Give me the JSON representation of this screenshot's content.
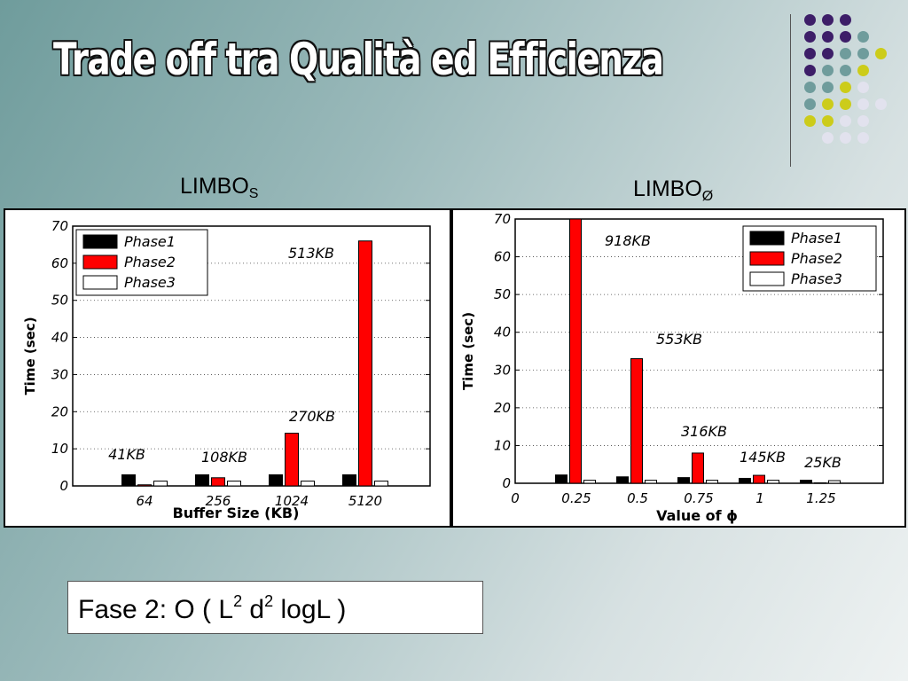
{
  "slide": {
    "title": "Trade off tra Qualità ed Efficienza",
    "caption_left": {
      "main": "LIMBO",
      "sub": "S"
    },
    "caption_right": {
      "main": "LIMBO",
      "sub": "Ø"
    },
    "formula": {
      "p1": "Fase 2: O ( L",
      "s1": "2",
      "p2": " d",
      "s2": "2",
      "p3": " logL )"
    },
    "colors": {
      "phase1": "#000000",
      "phase2": "#ff0000",
      "phase3": "#ffffff",
      "dot_purple": "#3d1e68",
      "dot_teal": "#6f9c9c",
      "dot_yellow": "#cccc1a",
      "dot_pale": "#e2e2ee"
    }
  },
  "chart_data": [
    {
      "type": "bar",
      "xlabel": "Buffer Size (KB)",
      "ylabel": "Time (sec)",
      "ylim": [
        0,
        70
      ],
      "yticks": [
        "0",
        "10",
        "20",
        "30",
        "40",
        "50",
        "60",
        "70"
      ],
      "categories": [
        "64",
        "256",
        "1024",
        "5120"
      ],
      "series": [
        {
          "name": "Phase1",
          "values": [
            3,
            3,
            3,
            3
          ]
        },
        {
          "name": "Phase2",
          "values": [
            0.3,
            2.2,
            14.2,
            66
          ]
        },
        {
          "name": "Phase3",
          "values": [
            1.3,
            1.3,
            1.3,
            1.3
          ]
        }
      ],
      "annotations": [
        "41KB",
        "108KB",
        "270KB",
        "513KB"
      ],
      "legend": "top-left",
      "grid": true
    },
    {
      "type": "bar",
      "xlabel": "Value of ϕ",
      "ylabel": "Time (sec)",
      "ylim": [
        0,
        70
      ],
      "yticks": [
        "0",
        "10",
        "20",
        "30",
        "40",
        "50",
        "60",
        "70"
      ],
      "xticks": [
        "0",
        "0.25",
        "0.5",
        "0.75",
        "1",
        "1.25"
      ],
      "categories": [
        "0.25",
        "0.5",
        "0.75",
        "1",
        "1.25"
      ],
      "series": [
        {
          "name": "Phase1",
          "values": [
            2.2,
            1.7,
            1.5,
            1.3,
            0.8
          ]
        },
        {
          "name": "Phase2",
          "values": [
            70,
            33,
            8,
            2.1,
            0.1
          ]
        },
        {
          "name": "Phase3",
          "values": [
            0.8,
            0.8,
            0.8,
            0.8,
            0.7
          ]
        }
      ],
      "annotations": [
        "918KB",
        "553KB",
        "316KB",
        "145KB",
        "25KB"
      ],
      "legend": "top-right",
      "grid": true
    }
  ]
}
